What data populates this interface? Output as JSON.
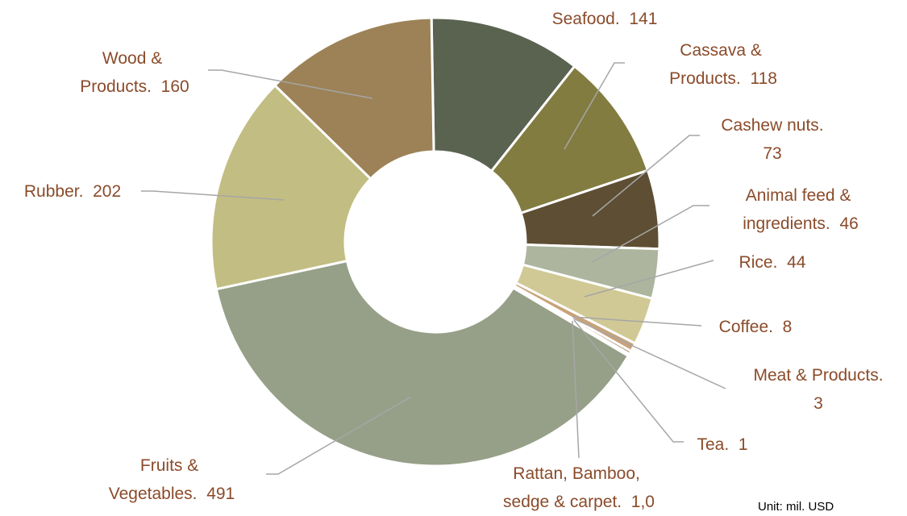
{
  "chart_data": {
    "type": "donut",
    "categories": [
      "Seafood.",
      "Cassava & Products.",
      "Cashew nuts.",
      "Animal feed & ingredients.",
      "Rice.",
      "Coffee.",
      "Meat & Products.",
      "Tea.",
      "Rattan, Bamboo, sedge & carpet.",
      "Fruits & Vegetables.",
      "Rubber.",
      "Wood & Products."
    ],
    "values": [
      141,
      118,
      73,
      46,
      44,
      8,
      3,
      1,
      1.0,
      491,
      202,
      160
    ],
    "value_labels": [
      "141",
      "118",
      "73",
      "46",
      "44",
      "8",
      "3",
      "1",
      "1,0",
      "491",
      "202",
      "160"
    ],
    "colors": [
      "#5a6350",
      "#827c40",
      "#5e4e33",
      "#adb59f",
      "#d0c995",
      "#c9a27a",
      "#a0805c",
      "#6e7a5a",
      "#8c7a50",
      "#96a088",
      "#c2bd82",
      "#9c8256"
    ],
    "note": "Unit: mil. USD"
  }
}
